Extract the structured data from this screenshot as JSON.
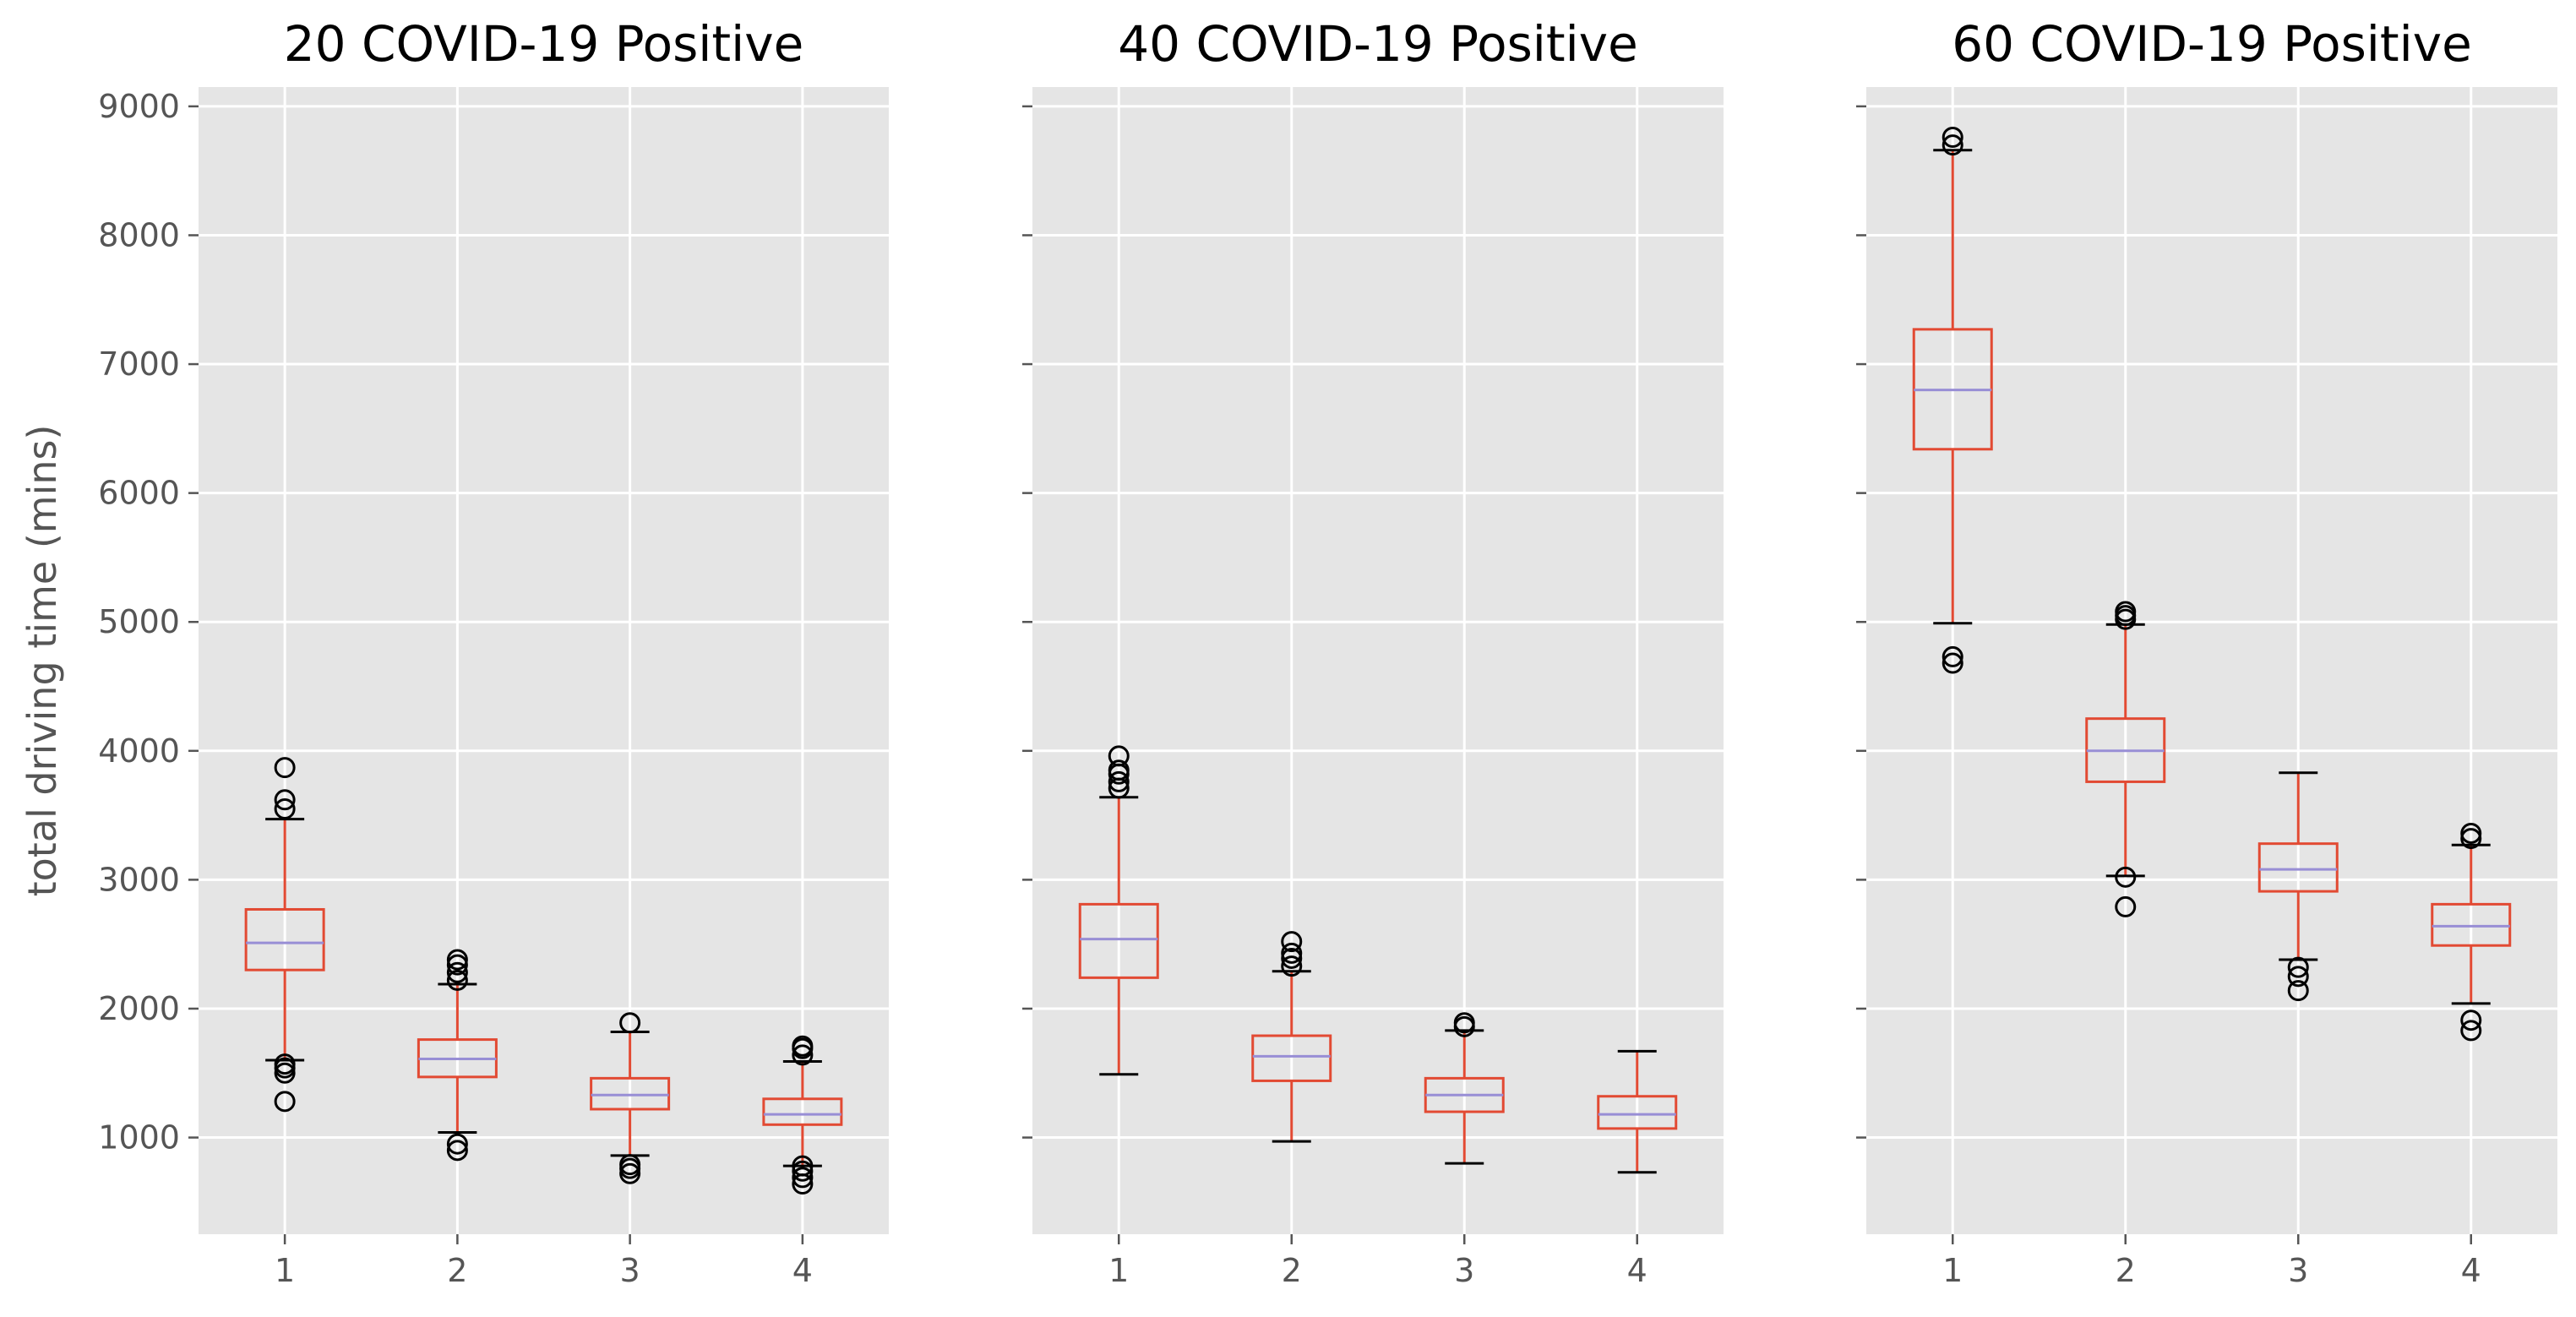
{
  "ylabel": "total driving time (mins)",
  "ylim": [
    250,
    9150
  ],
  "yticks": [
    1000,
    2000,
    3000,
    4000,
    5000,
    6000,
    7000,
    8000,
    9000
  ],
  "colors": {
    "background": "#e5e5e5",
    "grid": "#ffffff",
    "box": "#e24a33",
    "median": "#988ed5",
    "flier": "#000000",
    "tick": "#555555"
  },
  "chart_data": [
    {
      "type": "box",
      "title": "20 COVID-19 Positive",
      "categories": [
        "1",
        "2",
        "3",
        "4"
      ],
      "boxes": [
        {
          "category": "1",
          "whislo": 1600,
          "q1": 2300,
          "median": 2510,
          "q3": 2770,
          "whishi": 3470,
          "fliers": [
            1280,
            1500,
            1540,
            1570,
            3550,
            3620,
            3870
          ]
        },
        {
          "category": "2",
          "whislo": 1040,
          "q1": 1470,
          "median": 1610,
          "q3": 1760,
          "whishi": 2190,
          "fliers": [
            900,
            950,
            2220,
            2280,
            2340,
            2380
          ]
        },
        {
          "category": "3",
          "whislo": 860,
          "q1": 1220,
          "median": 1330,
          "q3": 1460,
          "whishi": 1820,
          "fliers": [
            720,
            760,
            790,
            1890
          ]
        },
        {
          "category": "4",
          "whislo": 780,
          "q1": 1100,
          "median": 1180,
          "q3": 1300,
          "whishi": 1590,
          "fliers": [
            640,
            690,
            740,
            780,
            1640,
            1690,
            1710
          ]
        }
      ]
    },
    {
      "type": "box",
      "title": "40 COVID-19 Positive",
      "categories": [
        "1",
        "2",
        "3",
        "4"
      ],
      "boxes": [
        {
          "category": "1",
          "whislo": 1490,
          "q1": 2240,
          "median": 2540,
          "q3": 2810,
          "whishi": 3640,
          "fliers": [
            3710,
            3760,
            3820,
            3850,
            3960
          ]
        },
        {
          "category": "2",
          "whislo": 970,
          "q1": 1440,
          "median": 1630,
          "q3": 1790,
          "whishi": 2290,
          "fliers": [
            2330,
            2390,
            2430,
            2520
          ]
        },
        {
          "category": "3",
          "whislo": 800,
          "q1": 1200,
          "median": 1330,
          "q3": 1460,
          "whishi": 1830,
          "fliers": [
            1860,
            1890
          ]
        },
        {
          "category": "4",
          "whislo": 730,
          "q1": 1070,
          "median": 1180,
          "q3": 1320,
          "whishi": 1670,
          "fliers": []
        }
      ]
    },
    {
      "type": "box",
      "title": "60 COVID-19 Positive",
      "categories": [
        "1",
        "2",
        "3",
        "4"
      ],
      "boxes": [
        {
          "category": "1",
          "whislo": 4990,
          "q1": 6340,
          "median": 6800,
          "q3": 7270,
          "whishi": 8660,
          "fliers": [
            4680,
            4730,
            8700,
            8760
          ]
        },
        {
          "category": "2",
          "whislo": 3030,
          "q1": 3760,
          "median": 4000,
          "q3": 4250,
          "whishi": 4980,
          "fliers": [
            2790,
            3020,
            5020,
            5050,
            5080
          ]
        },
        {
          "category": "3",
          "whislo": 2380,
          "q1": 2910,
          "median": 3080,
          "q3": 3280,
          "whishi": 3830,
          "fliers": [
            2140,
            2250,
            2320
          ]
        },
        {
          "category": "4",
          "whislo": 2040,
          "q1": 2490,
          "median": 2640,
          "q3": 2810,
          "whishi": 3270,
          "fliers": [
            1830,
            1910,
            3320,
            3360
          ]
        }
      ]
    }
  ]
}
